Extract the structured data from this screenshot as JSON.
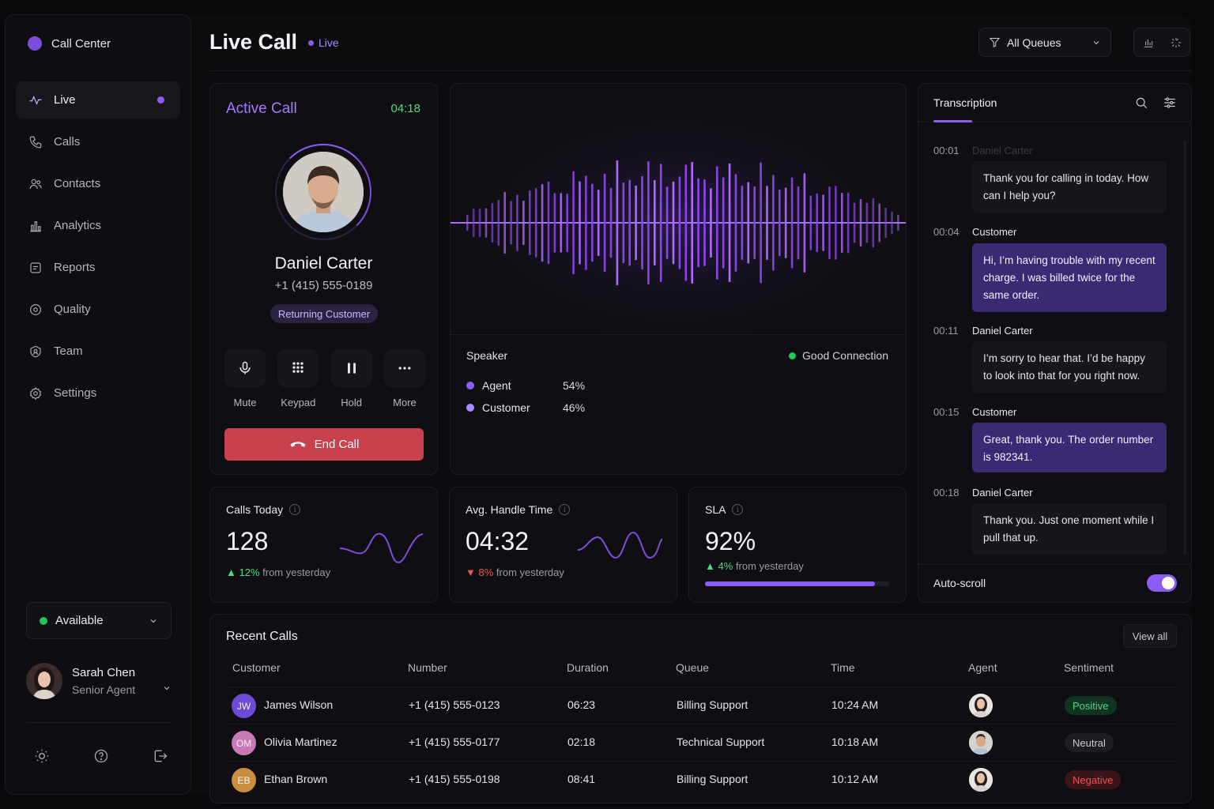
{
  "sidebar": {
    "brand": "Call Center",
    "nav": [
      {
        "label": "Live",
        "icon": "activity-icon",
        "active": true
      },
      {
        "label": "Calls",
        "icon": "phone-icon"
      },
      {
        "label": "Contacts",
        "icon": "users-icon"
      },
      {
        "label": "Analytics",
        "icon": "bar-chart-icon"
      },
      {
        "label": "Reports",
        "icon": "report-icon"
      },
      {
        "label": "Quality",
        "icon": "quality-icon"
      },
      {
        "label": "Team",
        "icon": "team-icon"
      },
      {
        "label": "Settings",
        "icon": "gear-icon"
      }
    ],
    "status": "Available",
    "user": {
      "name": "Sarah Chen",
      "role": "Senior Agent"
    }
  },
  "header": {
    "title": "Live Call",
    "badge": "Live",
    "queue_filter": "All Queues"
  },
  "active_call": {
    "title": "Active Call",
    "timer": "04:18",
    "caller_name": "Daniel Carter",
    "caller_number": "+1 (415) 555-0189",
    "tag": "Returning Customer",
    "controls": [
      {
        "label": "Mute",
        "icon": "microphone-icon"
      },
      {
        "label": "Keypad",
        "icon": "keypad-icon"
      },
      {
        "label": "Hold",
        "icon": "pause-icon"
      },
      {
        "label": "More",
        "icon": "more-icon"
      }
    ],
    "end_call": "End Call"
  },
  "waveform": {
    "speaker_title": "Speaker",
    "connection": "Good Connection",
    "speakers": [
      {
        "label": "Agent",
        "pct": "54%"
      },
      {
        "label": "Customer",
        "pct": "46%"
      }
    ],
    "colors": {
      "accent": "#8b5cf6",
      "good": "#22c55e"
    }
  },
  "stats": {
    "calls_today": {
      "label": "Calls Today",
      "value": "128",
      "delta": "12%",
      "delta_text": "from yesterday",
      "direction": "up"
    },
    "aht": {
      "label": "Avg. Handle Time",
      "value": "04:32",
      "delta": "8%",
      "delta_text": "from yesterday",
      "direction": "down"
    },
    "sla": {
      "label": "SLA",
      "value": "92%",
      "delta": "4%",
      "delta_text": "from yesterday",
      "direction": "up",
      "progress": 0.92
    }
  },
  "transcription": {
    "title": "Transcription",
    "messages": [
      {
        "time": "00:01",
        "speaker": "Daniel Carter",
        "text": "Thank you for calling in today. How can I help you?",
        "role": "agent"
      },
      {
        "time": "00:04",
        "speaker": "Customer",
        "text": "Hi, I’m having trouble with my recent charge. I was billed twice for the same order.",
        "role": "customer"
      },
      {
        "time": "00:11",
        "speaker": "Daniel Carter",
        "text": "I’m sorry to hear that. I’d be happy to look into that for you right now.",
        "role": "agent"
      },
      {
        "time": "00:15",
        "speaker": "Customer",
        "text": "Great, thank you. The order number is 982341.",
        "role": "customer"
      },
      {
        "time": "00:18",
        "speaker": "Daniel Carter",
        "text": "Thank you. Just one moment while I pull that up.",
        "role": "agent"
      }
    ],
    "autoscroll_label": "Auto-scroll",
    "autoscroll_on": true
  },
  "recent_calls": {
    "title": "Recent Calls",
    "view_all": "View all",
    "columns": [
      "Customer",
      "Number",
      "Duration",
      "Queue",
      "Time",
      "Agent",
      "Sentiment"
    ],
    "rows": [
      {
        "initials": "JW",
        "customer": "James Wilson",
        "number": "+1 (415) 555-0123",
        "duration": "06:23",
        "queue": "Billing Support",
        "time": "10:24 AM",
        "sentiment": "Positive",
        "avatar_color": "#6d4bd6"
      },
      {
        "initials": "OM",
        "customer": "Olivia Martinez",
        "number": "+1 (415) 555-0177",
        "duration": "02:18",
        "queue": "Technical Support",
        "time": "10:18 AM",
        "sentiment": "Neutral",
        "avatar_color": "#c77ab5"
      },
      {
        "initials": "EB",
        "customer": "Ethan Brown",
        "number": "+1 (415) 555-0198",
        "duration": "08:41",
        "queue": "Billing Support",
        "time": "10:12 AM",
        "sentiment": "Negative",
        "avatar_color": "#c98f3e"
      }
    ]
  }
}
